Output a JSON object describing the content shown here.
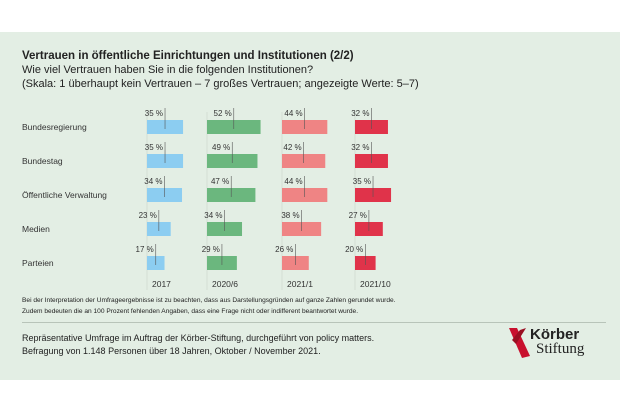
{
  "chart_data": {
    "type": "bar",
    "title": "Vertrauen in öffentliche Einrichtungen und Institutionen (2/2)",
    "subtitle": [
      "Wie viel Vertrauen haben Sie in die folgenden Institutionen?",
      "(Skala: 1 überhaupt kein Vertrauen – 7 großes Vertrauen; angezeigte Werte: 5–7)"
    ],
    "categories": [
      "Bundesregierung",
      "Bundestag",
      "Öffentliche Verwaltung",
      "Medien",
      "Parteien"
    ],
    "series": [
      {
        "name": "2017",
        "color": "#8ccdf1",
        "values": [
          35,
          35,
          34,
          23,
          17
        ]
      },
      {
        "name": "2020/6",
        "color": "#6bb77e",
        "values": [
          52,
          49,
          47,
          34,
          29
        ]
      },
      {
        "name": "2021/1",
        "color": "#ef8484",
        "values": [
          44,
          42,
          44,
          38,
          26
        ]
      },
      {
        "name": "2021/10",
        "color": "#e0334a",
        "values": [
          32,
          32,
          35,
          27,
          20
        ]
      }
    ],
    "value_suffix": " %",
    "orientation": "horizontal",
    "grid": false
  },
  "notes": [
    "Bei der Interpretation der Umfrageergebnisse ist zu beachten, dass aus Darstellungsgründen auf ganze Zahlen gerundet wurde.",
    "Zudem bedeuten die an 100 Prozent fehlenden Angaben, dass eine Frage nicht oder indifferent beantwortet wurde."
  ],
  "source": [
    "Repräsentative Umfrage im Auftrag der Körber-Stiftung, durchgeführt von policy matters.",
    "Befragung von 1.148 Personen über 18 Jahren, Oktober / November 2021."
  ],
  "logo": {
    "line1": "Körber",
    "line2": "Stiftung",
    "color": "#c8102e"
  }
}
